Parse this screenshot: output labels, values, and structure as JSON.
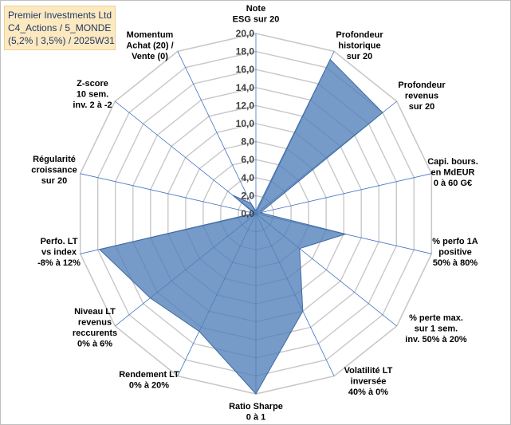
{
  "title": {
    "line1": "Premier Investments Ltd",
    "line2": "C4_Actions / 5_MONDE",
    "line3": "(5,2% | 3,5%) / 2025W31"
  },
  "chart_data": {
    "type": "radar",
    "axes": [
      {
        "name": "Note ESG sur 20",
        "lines": [
          "Note",
          "ESG sur 20"
        ]
      },
      {
        "name": "Profondeur historique sur 20",
        "lines": [
          "Profondeur",
          "historique",
          "sur 20"
        ]
      },
      {
        "name": "Profondeur revenus sur 20",
        "lines": [
          "Profondeur",
          "revenus",
          "sur 20"
        ]
      },
      {
        "name": "Capi. bours. en MdEUR 0 à 60 G€",
        "lines": [
          "Capi. bours.",
          "en MdEUR",
          "0 à 60 G€"
        ]
      },
      {
        "name": "% perfo 1A positive 50% à 80%",
        "lines": [
          "% perfo 1A",
          "positive",
          "50% à 80%"
        ]
      },
      {
        "name": "% perte max. sur 1 sem. inv. 50% à 20%",
        "lines": [
          "% perte max.",
          "sur 1 sem.",
          "inv. 50% à 20%"
        ]
      },
      {
        "name": "Volatilité LT inversée 40% à 0%",
        "lines": [
          "Volatilité LT",
          "inversée",
          "40% à 0%"
        ]
      },
      {
        "name": "Ratio Sharpe 0 à 1",
        "lines": [
          "Ratio Sharpe",
          "0 à 1"
        ]
      },
      {
        "name": "Rendement LT 0% à 20%",
        "lines": [
          "Rendement LT",
          "0% à 20%"
        ]
      },
      {
        "name": "Niveau LT revenus reccurents 0% à 6%",
        "lines": [
          "Niveau LT",
          "revenus",
          "reccurents",
          "0% à 6%"
        ]
      },
      {
        "name": "Perfo. LT vs index -8% à 12%",
        "lines": [
          "Perfo. LT",
          "vs index",
          "-8% à 12%"
        ]
      },
      {
        "name": "Régularité croissance sur 20",
        "lines": [
          "Régularité",
          "croissance",
          "sur 20"
        ]
      },
      {
        "name": "Z-score 10 sem. inv. 2 à -2",
        "lines": [
          "Z-score",
          "10 sem.",
          "inv. 2 à -2"
        ]
      },
      {
        "name": "Momentum Achat (20) / Vente (0)",
        "lines": [
          "Momentum",
          "Achat (20) /",
          "Vente (0)"
        ]
      }
    ],
    "values": [
      0.3,
      19.0,
      18.0,
      0.5,
      10.2,
      6.2,
      12.0,
      20.0,
      14.5,
      15.0,
      17.8,
      0.2,
      3.3,
      1.3
    ],
    "rlim": [
      0,
      20
    ],
    "ticks": [
      "0,0",
      "2,0",
      "4,0",
      "6,0",
      "8,0",
      "10,0",
      "12,0",
      "14,0",
      "16,0",
      "18,0",
      "20,0"
    ],
    "tick_values": [
      0,
      2,
      4,
      6,
      8,
      10,
      12,
      14,
      16,
      18,
      20
    ],
    "colors": {
      "fill": "#4f7fb8",
      "fill_opacity": "0.78",
      "stroke": "#3e6aa0",
      "grid": "#c8c8c8",
      "spoke": "#4472c4"
    }
  }
}
